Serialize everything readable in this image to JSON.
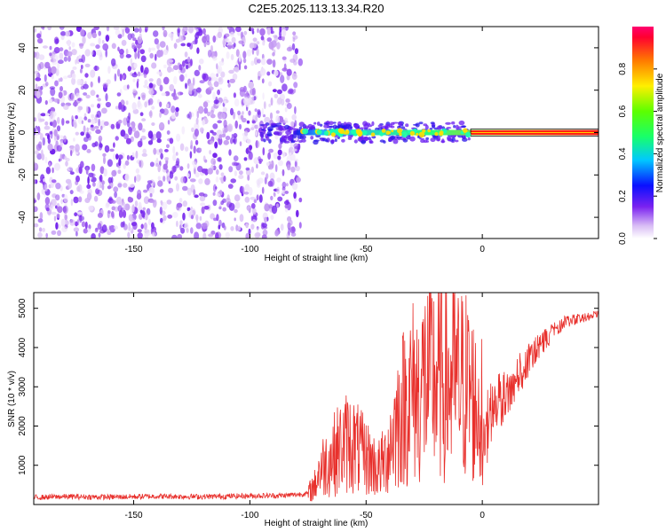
{
  "title": "C2E5.2025.113.13.34.R20",
  "colors": {
    "snr_line": "#e8302c",
    "frame": "#000000"
  },
  "chart_data": [
    {
      "type": "heatmap",
      "xlabel": "Height of straight line (km)",
      "ylabel": "Frequency (Hz)",
      "xlim": [
        -193,
        50
      ],
      "ylim": [
        -50,
        50
      ],
      "x_ticks": [
        -150,
        -100,
        -50,
        0
      ],
      "x_tick_labels": [
        "-150",
        "-100",
        "-50",
        "0"
      ],
      "y_ticks": [
        -40,
        -20,
        0,
        20,
        40
      ],
      "y_tick_labels": [
        "-40",
        "-20",
        "0",
        "20",
        "40"
      ],
      "description_regions": [
        {
          "x_range": [
            -193,
            -82
          ],
          "freq_range": [
            -50,
            50
          ],
          "amplitude": "low (0.05-0.25)"
        },
        {
          "x_range": [
            -92,
            -5
          ],
          "freq_center": 0,
          "amplitude": "0.2-0.6"
        },
        {
          "x_range": [
            -5,
            50
          ],
          "freq_center": 0,
          "amplitude": "~1.0"
        }
      ],
      "colorbar": {
        "label": "Normalized spectral amplitude",
        "range": [
          0,
          1
        ],
        "ticks": [
          0,
          0.2,
          0.4,
          0.6,
          0.8
        ],
        "tick_labels": [
          "0.0",
          "0.2",
          "0.4",
          "0.6",
          "0.8"
        ]
      }
    },
    {
      "type": "line",
      "xlabel": "Height of straight line (km)",
      "ylabel": "SNR (10 * v/v)",
      "xlim": [
        -193,
        50
      ],
      "ylim": [
        0,
        5400
      ],
      "x_ticks": [
        -150,
        -100,
        -50,
        0
      ],
      "x_tick_labels": [
        "-150",
        "-100",
        "-50",
        "0"
      ],
      "y_ticks": [
        1000,
        2000,
        3000,
        4000,
        5000
      ],
      "y_tick_labels": [
        "1000",
        "2000",
        "3000",
        "4000",
        "5000"
      ],
      "series": [
        {
          "x": [
            -193,
            -180,
            -160,
            -140,
            -120,
            -100,
            -85,
            -75,
            -72,
            -70,
            -65,
            -62,
            -58,
            -55,
            -52,
            -48,
            -45,
            -42,
            -40,
            -38,
            -35,
            -32,
            -30,
            -27,
            -25,
            -23,
            -21,
            -20,
            -17,
            -15,
            -12,
            -10,
            -8,
            -5,
            -3,
            0,
            3,
            6,
            10,
            15,
            20,
            25,
            30,
            35,
            40,
            45,
            50
          ],
          "y": [
            180,
            200,
            190,
            210,
            200,
            220,
            230,
            280,
            500,
            900,
            1200,
            1400,
            1600,
            1500,
            1300,
            1100,
            900,
            1100,
            1500,
            1900,
            2400,
            2700,
            2900,
            2800,
            3200,
            3100,
            3300,
            3100,
            3200,
            3000,
            3200,
            3000,
            3100,
            2900,
            2500,
            2300,
            3100,
            3300,
            3500,
            3800,
            4100,
            4400,
            4600,
            4800,
            4850,
            4900,
            4950
          ]
        }
      ]
    }
  ]
}
